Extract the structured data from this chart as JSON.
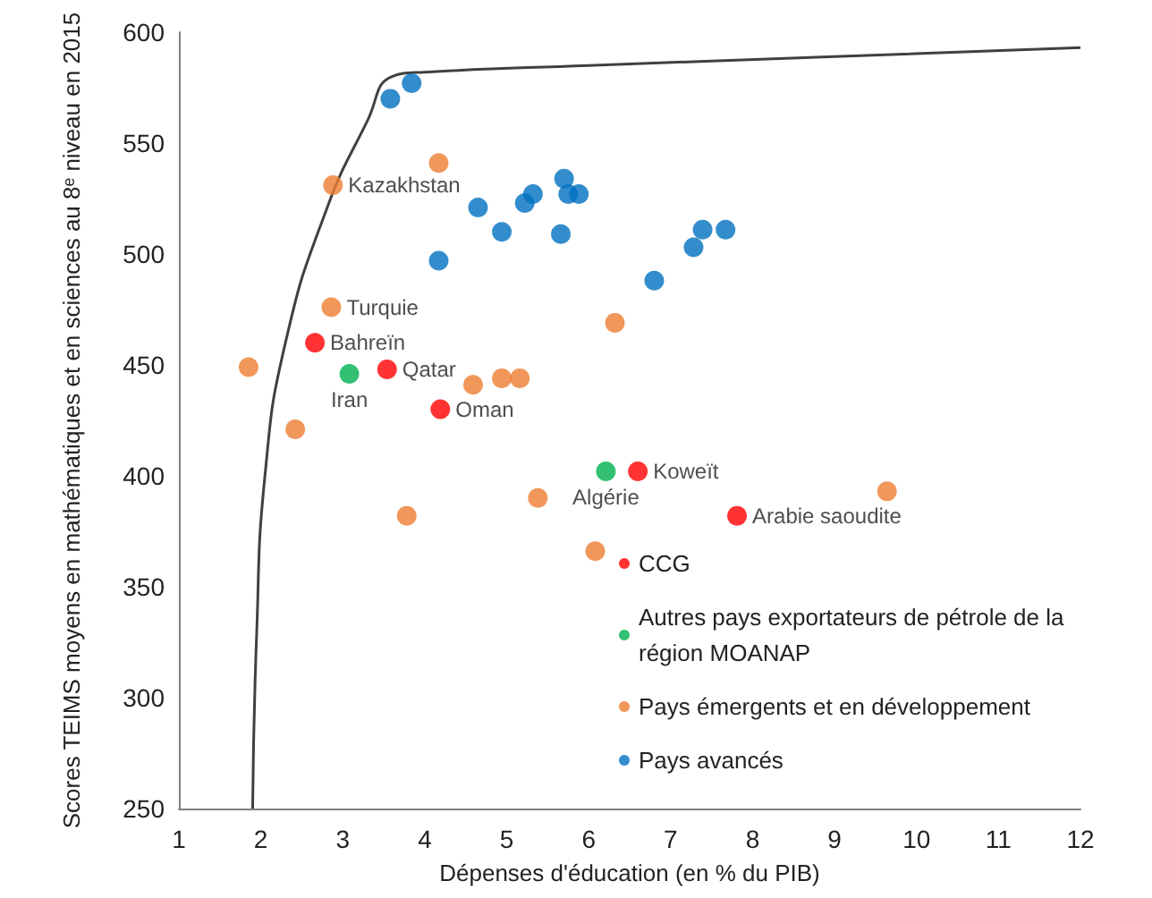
{
  "chart_data": {
    "type": "scatter",
    "xlabel": "Dépenses d'éducation (en % du PIB)",
    "ylabel": "Scores TEIMS moyens en mathématiques et en sciences au 8ᵉ niveau en 2015",
    "xlim": [
      1,
      12
    ],
    "xticks": [
      1,
      2,
      3,
      4,
      5,
      6,
      7,
      8,
      9,
      10,
      11,
      12
    ],
    "ylim": [
      250,
      600
    ],
    "yticks": [
      250,
      300,
      350,
      400,
      450,
      500,
      550,
      600
    ],
    "grid": false,
    "legend": "bottom right",
    "series": [
      {
        "type": "line",
        "marker": "none",
        "color": "#404040",
        "x": [
          1.9,
          1.95,
          2.05,
          2.3,
          2.8,
          3.3,
          3.6,
          4,
          6,
          9,
          12
        ],
        "values": [
          250,
          330,
          400,
          460,
          520,
          560,
          580,
          582,
          585,
          589,
          593
        ]
      },
      {
        "name": "CCG",
        "marker": "circle",
        "color": "#ff0000",
        "x": [
          2.66,
          3.54,
          4.19,
          6.6,
          7.81
        ],
        "values": [
          460,
          448,
          430,
          402,
          382
        ],
        "value_labels": [
          "Bahreïn",
          "Qatar",
          "Oman",
          "Koweït",
          "Arabie saoudite"
        ]
      },
      {
        "name": "Autres pays exportateurs de pétrole de la région MOANAP",
        "marker": "circle",
        "color": "#00b050",
        "x": [
          3.08,
          6.21
        ],
        "values": [
          446,
          402
        ],
        "value_labels": [
          "Iran",
          "Algérie"
        ]
      },
      {
        "name": "Pays émergents et en développement",
        "marker": "circle",
        "color": "#ed7d31",
        "x": [
          4.17,
          2.88,
          2.86,
          1.85,
          2.42,
          3.78,
          4.59,
          4.94,
          5.16,
          6.32,
          5.38,
          6.08,
          9.64
        ],
        "values": [
          541,
          531,
          476,
          449,
          421,
          382,
          441,
          444,
          444,
          469,
          390,
          366,
          393
        ],
        "value_labels": [
          null,
          "Kazakhstan",
          "Turquie",
          null,
          null,
          null,
          null,
          null,
          null,
          null,
          null,
          null,
          null
        ]
      },
      {
        "name": "Pays avancés",
        "marker": "circle",
        "color": "#0070c0",
        "x": [
          3.58,
          3.84,
          4.65,
          4.94,
          5.22,
          5.32,
          5.7,
          5.75,
          5.88,
          5.66,
          4.17,
          6.8,
          7.28,
          7.39,
          7.67
        ],
        "values": [
          570,
          577,
          521,
          510,
          523,
          527,
          534,
          527,
          527,
          509,
          497,
          488,
          503,
          511,
          511
        ]
      }
    ]
  }
}
